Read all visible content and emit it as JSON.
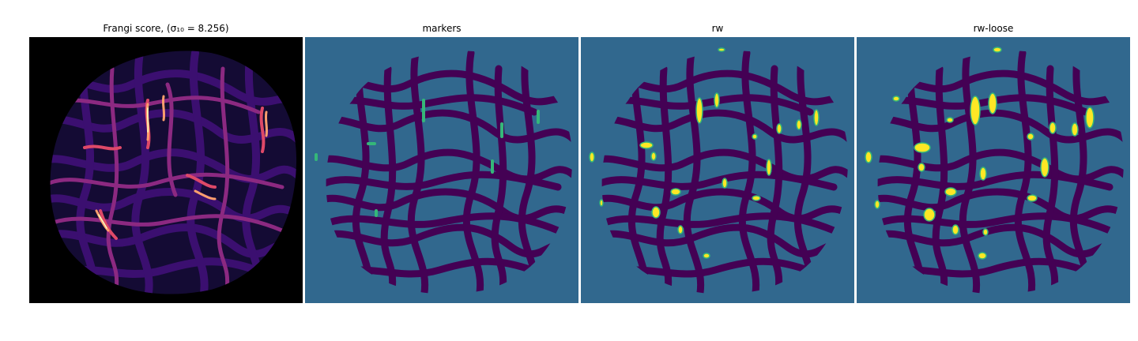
{
  "figure": {
    "panels": [
      {
        "id": "frangi",
        "title": "Frangi score, (σ₁₀ = 8.256)",
        "colormap": "magma",
        "background": "#000000"
      },
      {
        "id": "markers",
        "title": "markers",
        "colormap": "viridis",
        "background": "#31688e"
      },
      {
        "id": "rw",
        "title": "rw",
        "colormap": "viridis",
        "background": "#31688e"
      },
      {
        "id": "rw-loose",
        "title": "rw-loose",
        "colormap": "viridis",
        "background": "#31688e"
      }
    ]
  },
  "colors": {
    "viridis_dark": "#440154",
    "viridis_teal": "#31688e",
    "viridis_green": "#35b779",
    "viridis_yellow": "#fde725",
    "magma_black": "#000000",
    "magma_purple": "#3b0f70",
    "magma_magenta": "#b5367a",
    "magma_orange": "#fb8861",
    "magma_yellow": "#fcfdbf"
  }
}
